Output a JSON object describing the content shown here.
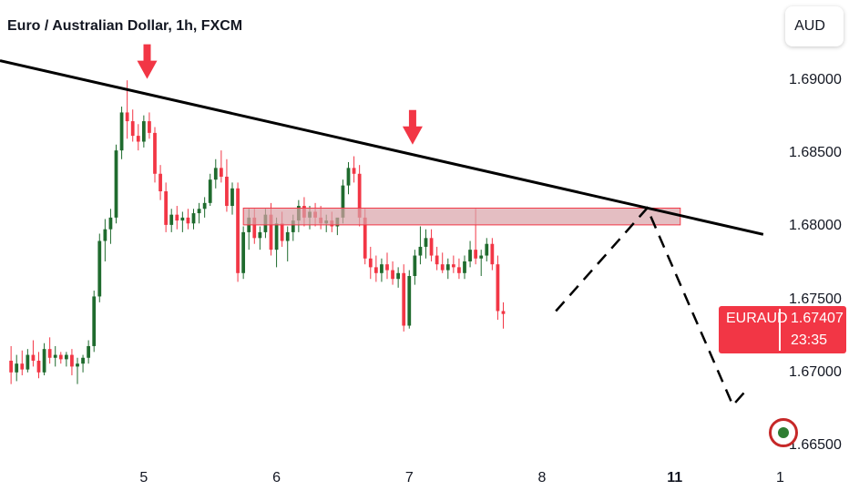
{
  "header": {
    "title": "Euro / Australian Dollar, 1h, FXCM",
    "currency": "AUD"
  },
  "price_tag": {
    "symbol": "EURAUD",
    "price": "1.67407",
    "countdown": "23:35"
  },
  "colors": {
    "up": "#1f6b2e",
    "down": "#f23645",
    "trendline": "#000000",
    "zone_fill": "#d9a3a8",
    "zone_border": "#f23645",
    "arrow": "#f23645",
    "price_tag_bg": "#f23645"
  },
  "chart_data": {
    "type": "candlestick",
    "instrument": "EURAUD",
    "timeframe": "1h",
    "source": "FXCM",
    "ylim": [
      1.664,
      1.6955
    ],
    "xlim": [
      -2,
      138
    ],
    "y_ticks": [
      "1.69000",
      "1.68500",
      "1.68000",
      "1.67500",
      "1.67000",
      "1.66500"
    ],
    "y_tick_values": [
      1.69,
      1.685,
      1.68,
      1.675,
      1.67,
      1.665
    ],
    "x_ticks": [
      {
        "label": "5",
        "x": 24,
        "bold": false
      },
      {
        "label": "6",
        "x": 48,
        "bold": false
      },
      {
        "label": "7",
        "x": 72,
        "bold": false
      },
      {
        "label": "8",
        "x": 96,
        "bold": false
      },
      {
        "label": "11",
        "x": 120,
        "bold": true
      },
      {
        "label": "1",
        "x": 144,
        "bold": false
      }
    ],
    "last_price": 1.67407,
    "candles": [
      [
        1.6708,
        1.6718,
        1.6692,
        1.67
      ],
      [
        1.67,
        1.6712,
        1.6694,
        1.6706
      ],
      [
        1.6706,
        1.6715,
        1.6698,
        1.6702
      ],
      [
        1.6702,
        1.6716,
        1.67,
        1.6712
      ],
      [
        1.6712,
        1.6722,
        1.6704,
        1.6708
      ],
      [
        1.6708,
        1.6714,
        1.6696,
        1.67
      ],
      [
        1.67,
        1.672,
        1.6698,
        1.6716
      ],
      [
        1.6716,
        1.6724,
        1.6706,
        1.671
      ],
      [
        1.671,
        1.6718,
        1.6704,
        1.6712
      ],
      [
        1.6712,
        1.6714,
        1.6706,
        1.6709
      ],
      [
        1.6709,
        1.6714,
        1.6704,
        1.6712
      ],
      [
        1.6712,
        1.6716,
        1.6698,
        1.6704
      ],
      [
        1.6704,
        1.671,
        1.6692,
        1.6706
      ],
      [
        1.6706,
        1.6712,
        1.67,
        1.671
      ],
      [
        1.671,
        1.6722,
        1.6706,
        1.6718
      ],
      [
        1.6718,
        1.6756,
        1.6714,
        1.6752
      ],
      [
        1.6752,
        1.6795,
        1.6748,
        1.679
      ],
      [
        1.679,
        1.6805,
        1.6776,
        1.6798
      ],
      [
        1.6798,
        1.6812,
        1.6788,
        1.6806
      ],
      [
        1.6806,
        1.6856,
        1.6802,
        1.6852
      ],
      [
        1.6852,
        1.6882,
        1.6846,
        1.6878
      ],
      [
        1.6878,
        1.69,
        1.686,
        1.6872
      ],
      [
        1.6872,
        1.688,
        1.6858,
        1.6862
      ],
      [
        1.6862,
        1.687,
        1.6852,
        1.6858
      ],
      [
        1.6858,
        1.6876,
        1.6854,
        1.6872
      ],
      [
        1.6872,
        1.6878,
        1.686,
        1.6864
      ],
      [
        1.6864,
        1.6868,
        1.683,
        1.6836
      ],
      [
        1.6836,
        1.6842,
        1.6818,
        1.6824
      ],
      [
        1.6824,
        1.683,
        1.6796,
        1.6801
      ],
      [
        1.6801,
        1.6812,
        1.6796,
        1.6808
      ],
      [
        1.6808,
        1.6814,
        1.6798,
        1.6804
      ],
      [
        1.6804,
        1.681,
        1.6796,
        1.6806
      ],
      [
        1.6806,
        1.6812,
        1.6798,
        1.6802
      ],
      [
        1.6802,
        1.6812,
        1.6798,
        1.6809
      ],
      [
        1.6809,
        1.6816,
        1.6802,
        1.6812
      ],
      [
        1.6812,
        1.682,
        1.6806,
        1.6816
      ],
      [
        1.6816,
        1.6836,
        1.6814,
        1.6832
      ],
      [
        1.6832,
        1.6846,
        1.6826,
        1.684
      ],
      [
        1.684,
        1.6852,
        1.683,
        1.6834
      ],
      [
        1.6834,
        1.6846,
        1.681,
        1.6814
      ],
      [
        1.6814,
        1.683,
        1.6808,
        1.6826
      ],
      [
        1.6826,
        1.683,
        1.6762,
        1.6768
      ],
      [
        1.6768,
        1.68,
        1.6764,
        1.6796
      ],
      [
        1.6796,
        1.6812,
        1.6784,
        1.6806
      ],
      [
        1.6806,
        1.6812,
        1.6788,
        1.6792
      ],
      [
        1.6792,
        1.68,
        1.6784,
        1.6796
      ],
      [
        1.6796,
        1.6812,
        1.6792,
        1.6808
      ],
      [
        1.6808,
        1.6816,
        1.678,
        1.6784
      ],
      [
        1.6784,
        1.6806,
        1.6772,
        1.6802
      ],
      [
        1.6802,
        1.681,
        1.6786,
        1.679
      ],
      [
        1.679,
        1.68,
        1.6776,
        1.6796
      ],
      [
        1.6796,
        1.6808,
        1.679,
        1.6804
      ],
      [
        1.6804,
        1.6818,
        1.6796,
        1.6814
      ],
      [
        1.6814,
        1.682,
        1.68,
        1.6806
      ],
      [
        1.6806,
        1.6814,
        1.6798,
        1.681
      ],
      [
        1.681,
        1.6816,
        1.68,
        1.6806
      ],
      [
        1.6806,
        1.6814,
        1.6798,
        1.6802
      ],
      [
        1.6802,
        1.6808,
        1.6796,
        1.6804
      ],
      [
        1.6804,
        1.681,
        1.6796,
        1.68
      ],
      [
        1.68,
        1.6804,
        1.6794,
        1.6806
      ],
      [
        1.6806,
        1.6832,
        1.6802,
        1.6828
      ],
      [
        1.6828,
        1.6844,
        1.6822,
        1.684
      ],
      [
        1.684,
        1.6848,
        1.683,
        1.6836
      ],
      [
        1.6836,
        1.6842,
        1.68,
        1.6806
      ],
      [
        1.6806,
        1.6812,
        1.6774,
        1.6778
      ],
      [
        1.6778,
        1.6786,
        1.6764,
        1.6772
      ],
      [
        1.6772,
        1.678,
        1.6762,
        1.6768
      ],
      [
        1.6768,
        1.6778,
        1.6762,
        1.6774
      ],
      [
        1.6774,
        1.6782,
        1.6764,
        1.677
      ],
      [
        1.677,
        1.6776,
        1.676,
        1.6764
      ],
      [
        1.6764,
        1.6772,
        1.6758,
        1.6768
      ],
      [
        1.6768,
        1.6774,
        1.6728,
        1.6732
      ],
      [
        1.6732,
        1.677,
        1.673,
        1.6766
      ],
      [
        1.6766,
        1.6784,
        1.676,
        1.678
      ],
      [
        1.678,
        1.68,
        1.6774,
        1.6786
      ],
      [
        1.6786,
        1.6798,
        1.6778,
        1.6792
      ],
      [
        1.6792,
        1.6798,
        1.6776,
        1.678
      ],
      [
        1.678,
        1.6786,
        1.677,
        1.6774
      ],
      [
        1.6774,
        1.6782,
        1.6768,
        1.677
      ],
      [
        1.677,
        1.6778,
        1.6764,
        1.6774
      ],
      [
        1.6774,
        1.678,
        1.6768,
        1.6772
      ],
      [
        1.6772,
        1.6778,
        1.6764,
        1.6768
      ],
      [
        1.6768,
        1.678,
        1.6764,
        1.6776
      ],
      [
        1.6776,
        1.679,
        1.6772,
        1.6784
      ],
      [
        1.6784,
        1.6812,
        1.6774,
        1.6778
      ],
      [
        1.6778,
        1.6784,
        1.6766,
        1.678
      ],
      [
        1.678,
        1.6792,
        1.6776,
        1.6788
      ],
      [
        1.6788,
        1.6792,
        1.677,
        1.6774
      ],
      [
        1.6774,
        1.678,
        1.6736,
        1.6742
      ],
      [
        1.6742,
        1.6748,
        1.673,
        1.674
      ]
    ],
    "candle_x_start": 0,
    "candle_x_step": 1,
    "annotations": {
      "trendline": {
        "from": [
          -2,
          1.69135
        ],
        "to": [
          136,
          1.67945
        ]
      },
      "resistance_zone": {
        "x": [
          42,
          121
        ],
        "y": [
          1.6801,
          1.68125
        ]
      },
      "arrows": [
        {
          "x": 24.6,
          "y": 1.6901
        },
        {
          "x": 72.6,
          "y": 1.6856
        }
      ],
      "projected_path": [
        [
          98.5,
          1.6742
        ],
        [
          115,
          1.68125
        ],
        [
          130.5,
          1.66775
        ],
        [
          133,
          1.6688
        ]
      ]
    }
  }
}
